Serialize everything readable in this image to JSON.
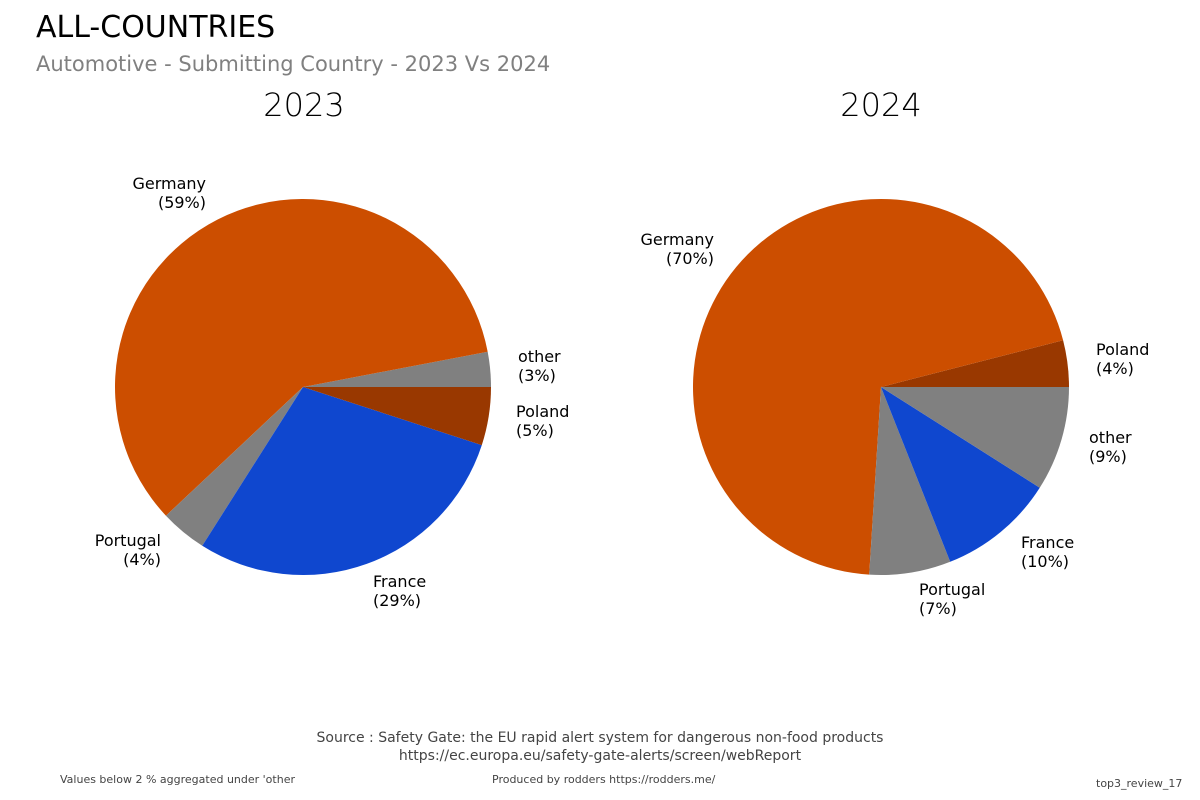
{
  "title": "ALL-COUNTRIES",
  "subtitle": "Automotive - Submitting Country - 2023 Vs 2024",
  "colors": {
    "Germany": "#cc4e00",
    "France": "#0f47cf",
    "Poland": "#993800",
    "Portugal": "#808080",
    "other": "#808080",
    "stroke": "#ffffff"
  },
  "chart_data": [
    {
      "type": "pie",
      "title": "2023",
      "labels": [
        "other",
        "Germany",
        "Portugal",
        "France",
        "Poland"
      ],
      "values": [
        3,
        59,
        4,
        29,
        5
      ],
      "value_labels": [
        "(3%)",
        "(59%)",
        "(4%)",
        "(29%)",
        "(5%)"
      ],
      "direction": "counterclockwise",
      "start_angle_deg": 0
    },
    {
      "type": "pie",
      "title": "2024",
      "labels": [
        "Poland",
        "Germany",
        "Portugal",
        "France",
        "other"
      ],
      "values": [
        4,
        70,
        7,
        10,
        9
      ],
      "value_labels": [
        "(4%)",
        "(70%)",
        "(7%)",
        "(10%)",
        "(9%)"
      ],
      "direction": "counterclockwise",
      "start_angle_deg": 0
    }
  ],
  "source": {
    "line1": "Source : Safety Gate: the EU rapid alert system for dangerous non-food products",
    "line2": "https://ec.europa.eu/safety-gate-alerts/screen/webReport"
  },
  "footer": {
    "left": "Values below 2 % aggregated under 'other",
    "center": "Produced by rodders https://rodders.me/",
    "right": "top3_review_17"
  }
}
